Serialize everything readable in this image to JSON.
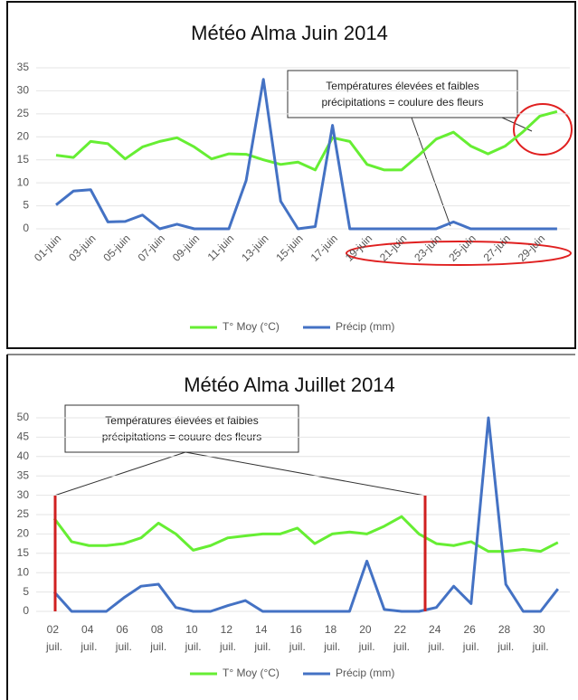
{
  "chart_data": [
    {
      "type": "line",
      "title": "Météo Alma Juin 2014",
      "categories": [
        "01-juin",
        null,
        "03-juin",
        null,
        "05-juin",
        null,
        "07-juin",
        null,
        "09-juin",
        null,
        "11-juin",
        null,
        "13-juin",
        null,
        "15-juin",
        null,
        "17-juin",
        null,
        "19-juin",
        null,
        "21-juin",
        null,
        "23-juin",
        null,
        "25-juin",
        null,
        "27-juin",
        null,
        "29-juin",
        null
      ],
      "series": [
        {
          "name": "T° Moy (°C)",
          "color": "#66ee33",
          "values": [
            16,
            15.5,
            19,
            18.5,
            15.2,
            17.8,
            19,
            19.8,
            17.8,
            15.2,
            16.3,
            16.2,
            15,
            14,
            14.5,
            12.8,
            19.8,
            19,
            14,
            12.8,
            12.8,
            16,
            19.5,
            21,
            18,
            16.3,
            18,
            21,
            24.5,
            25.5
          ]
        },
        {
          "name": "Précip (mm)",
          "color": "#4472c4",
          "values": [
            5.2,
            8.2,
            8.5,
            1.5,
            1.6,
            3,
            0,
            1,
            0,
            0,
            0,
            10.5,
            32.5,
            6,
            0,
            0.5,
            22.5,
            0,
            0,
            0,
            0,
            0,
            0,
            1.5,
            0,
            0,
            0,
            0,
            0,
            0
          ]
        }
      ],
      "ylim": [
        0,
        35
      ],
      "yticks": [
        0,
        5,
        10,
        15,
        20,
        25,
        30,
        35
      ],
      "grid": true,
      "annotation": [
        "Températures élevées et faibles",
        "précipitations = coulure des fleurs"
      ]
    },
    {
      "type": "line",
      "title": "Météo Alma Juillet 2014",
      "categories": [
        "02 juil.",
        null,
        "04 juil.",
        null,
        "06 juil.",
        null,
        "08 juil.",
        null,
        "10 juil.",
        null,
        "12 juil.",
        null,
        "14 juil.",
        null,
        "16 juil.",
        null,
        "18 juil.",
        null,
        "20 juil.",
        null,
        "22 juil.",
        null,
        "24 juil.",
        null,
        "26 juil.",
        null,
        "28 juil.",
        null,
        "30 juil.",
        null
      ],
      "series": [
        {
          "name": "T° Moy (°C)",
          "color": "#66ee33",
          "values": [
            24,
            18,
            17,
            17,
            17.5,
            19,
            22.8,
            20,
            15.8,
            17,
            19,
            19.5,
            20,
            20,
            21.5,
            17.5,
            20,
            20.5,
            20,
            22,
            24.5,
            20,
            17.5,
            17,
            18,
            15.5,
            15.5,
            16,
            15.5,
            17.8
          ]
        },
        {
          "name": "Précip (mm)",
          "color": "#4472c4",
          "values": [
            5,
            0,
            0,
            0,
            3.5,
            6.5,
            7,
            1,
            0,
            0,
            1.5,
            2.8,
            0,
            0,
            0,
            0,
            0,
            0,
            13,
            0.5,
            0,
            0,
            1,
            6.5,
            2,
            50,
            7,
            0,
            0,
            5.8
          ]
        }
      ],
      "ylim": [
        0,
        50
      ],
      "yticks": [
        0,
        5,
        10,
        15,
        20,
        25,
        30,
        35,
        40,
        45,
        50
      ],
      "grid": true,
      "annotation": [
        "Températures élevées et faibles",
        "précipitations = couure des fleurs"
      ]
    }
  ]
}
